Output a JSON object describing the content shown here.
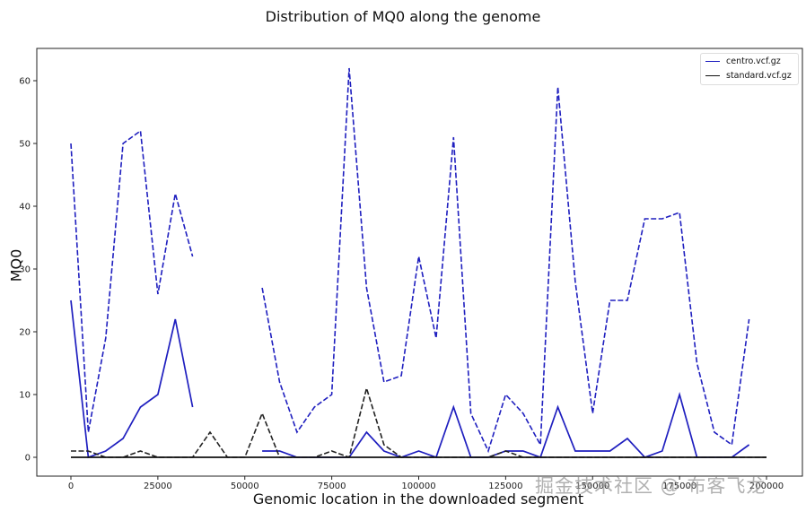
{
  "title": "Distribution of MQ0 along the genome",
  "xlabel": "Genomic location in the downloaded segment",
  "ylabel": "MQ0",
  "legend": [
    {
      "label": "centro.vcf.gz",
      "color": "#1f1fbf"
    },
    {
      "label": "standard.vcf.gz",
      "color": "#111111"
    }
  ],
  "watermark": "掘金技术社区 @ 布客飞龙",
  "axes": {
    "x_ticks": [
      0,
      25000,
      50000,
      75000,
      100000,
      125000,
      150000,
      175000,
      200000
    ],
    "x_tick_labels": [
      "0",
      "25000",
      "50000",
      "75000",
      "100000",
      "125000",
      "150000",
      "175000",
      "200000"
    ],
    "y_ticks": [
      0,
      10,
      20,
      30,
      40,
      50,
      60
    ],
    "y_tick_labels": [
      "0",
      "10",
      "20",
      "30",
      "40",
      "50",
      "60"
    ]
  },
  "chart_data": {
    "type": "line",
    "title": "Distribution of MQ0 along the genome",
    "xlabel": "Genomic location in the downloaded segment",
    "ylabel": "MQ0",
    "xlim": [
      -10000,
      210000
    ],
    "ylim": [
      -3,
      65
    ],
    "grid": false,
    "legend_position": "upper right",
    "series": [
      {
        "name": "centro.vcf.gz (dashed)",
        "color": "#1f1fbf",
        "style": "dashed",
        "x": [
          0,
          5000,
          10000,
          15000,
          20000,
          25000,
          30000,
          35000,
          40000,
          45000,
          50000,
          55000,
          60000,
          65000,
          70000,
          75000,
          80000,
          85000,
          90000,
          95000,
          100000,
          105000,
          110000,
          115000,
          120000,
          125000,
          130000,
          135000,
          140000,
          145000,
          150000,
          155000,
          160000,
          165000,
          170000,
          175000,
          180000,
          185000,
          190000,
          195000
        ],
        "values": [
          50,
          4,
          19,
          50,
          52,
          26,
          42,
          32,
          null,
          null,
          null,
          27,
          12,
          4,
          8,
          10,
          62,
          27,
          12,
          13,
          32,
          19,
          51,
          7,
          1,
          10,
          7,
          2,
          59,
          28,
          7,
          25,
          25,
          38,
          38,
          39,
          15,
          4,
          2,
          22
        ]
      },
      {
        "name": "centro.vcf.gz",
        "color": "#1f1fbf",
        "style": "solid",
        "x": [
          0,
          5000,
          10000,
          15000,
          20000,
          25000,
          30000,
          35000,
          40000,
          45000,
          50000,
          55000,
          60000,
          65000,
          70000,
          75000,
          80000,
          85000,
          90000,
          95000,
          100000,
          105000,
          110000,
          115000,
          120000,
          125000,
          130000,
          135000,
          140000,
          145000,
          150000,
          155000,
          160000,
          165000,
          170000,
          175000,
          180000,
          185000,
          190000,
          195000
        ],
        "values": [
          25,
          0,
          1,
          3,
          8,
          10,
          22,
          8,
          null,
          null,
          null,
          1,
          1,
          0,
          0,
          0,
          0,
          4,
          1,
          0,
          1,
          0,
          8,
          0,
          0,
          1,
          1,
          0,
          8,
          1,
          1,
          1,
          3,
          0,
          1,
          10,
          0,
          0,
          0,
          2
        ]
      },
      {
        "name": "standard.vcf.gz (dashed)",
        "color": "#222222",
        "style": "dashed",
        "x": [
          0,
          5000,
          10000,
          15000,
          20000,
          25000,
          30000,
          35000,
          40000,
          45000,
          50000,
          55000,
          60000,
          65000,
          70000,
          75000,
          80000,
          85000,
          90000,
          95000,
          100000,
          105000,
          110000,
          115000,
          120000,
          125000,
          130000,
          135000,
          140000,
          145000,
          150000,
          155000,
          160000,
          165000,
          170000,
          175000,
          180000,
          185000,
          190000,
          195000,
          200000
        ],
        "values": [
          1,
          1,
          0,
          0,
          1,
          0,
          0,
          0,
          4,
          0,
          0,
          7,
          0,
          0,
          0,
          1,
          0,
          11,
          2,
          0,
          0,
          0,
          0,
          0,
          0,
          1,
          0,
          0,
          0,
          0,
          0,
          0,
          0,
          0,
          0,
          0,
          0,
          0,
          0,
          0,
          0
        ]
      },
      {
        "name": "standard.vcf.gz",
        "color": "#111111",
        "style": "solid",
        "x": [
          0,
          200000
        ],
        "values": [
          0,
          0
        ]
      }
    ]
  }
}
